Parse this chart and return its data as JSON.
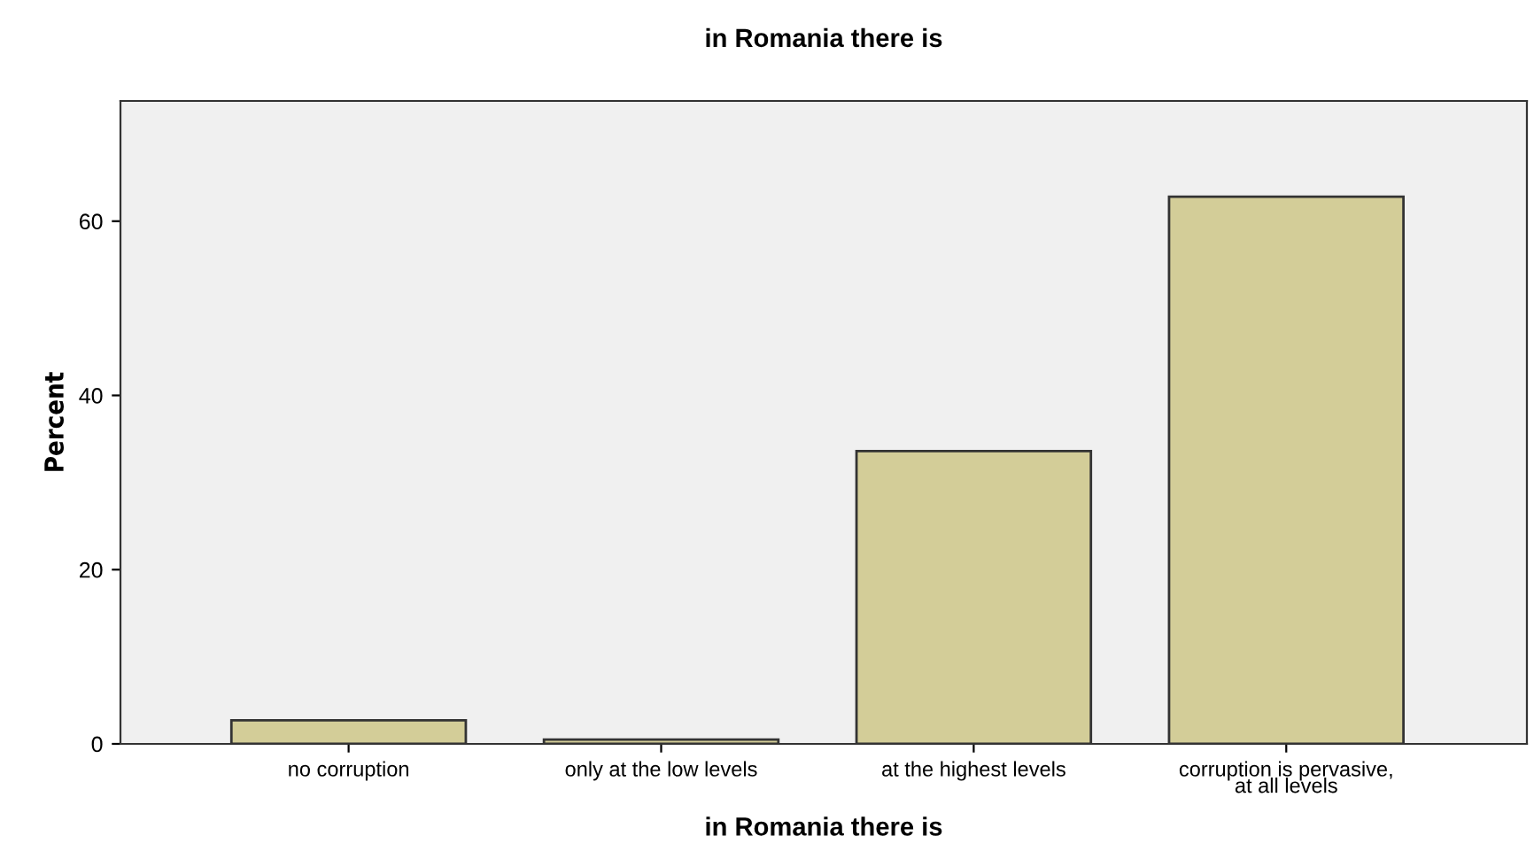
{
  "chart_data": {
    "type": "bar",
    "title": "in Romania there is",
    "xlabel": "in Romania there is",
    "ylabel": "Percent",
    "categories": [
      "no corruption",
      "only at the low levels",
      "at the highest levels",
      "corruption is pervasive,\nat all levels"
    ],
    "values": [
      2.7,
      0.5,
      33.6,
      62.8
    ],
    "color": "#d3cd98",
    "ylim": [
      0,
      73.8
    ],
    "yticks": [
      0,
      20,
      40,
      60
    ],
    "grid": false,
    "legend": false
  }
}
